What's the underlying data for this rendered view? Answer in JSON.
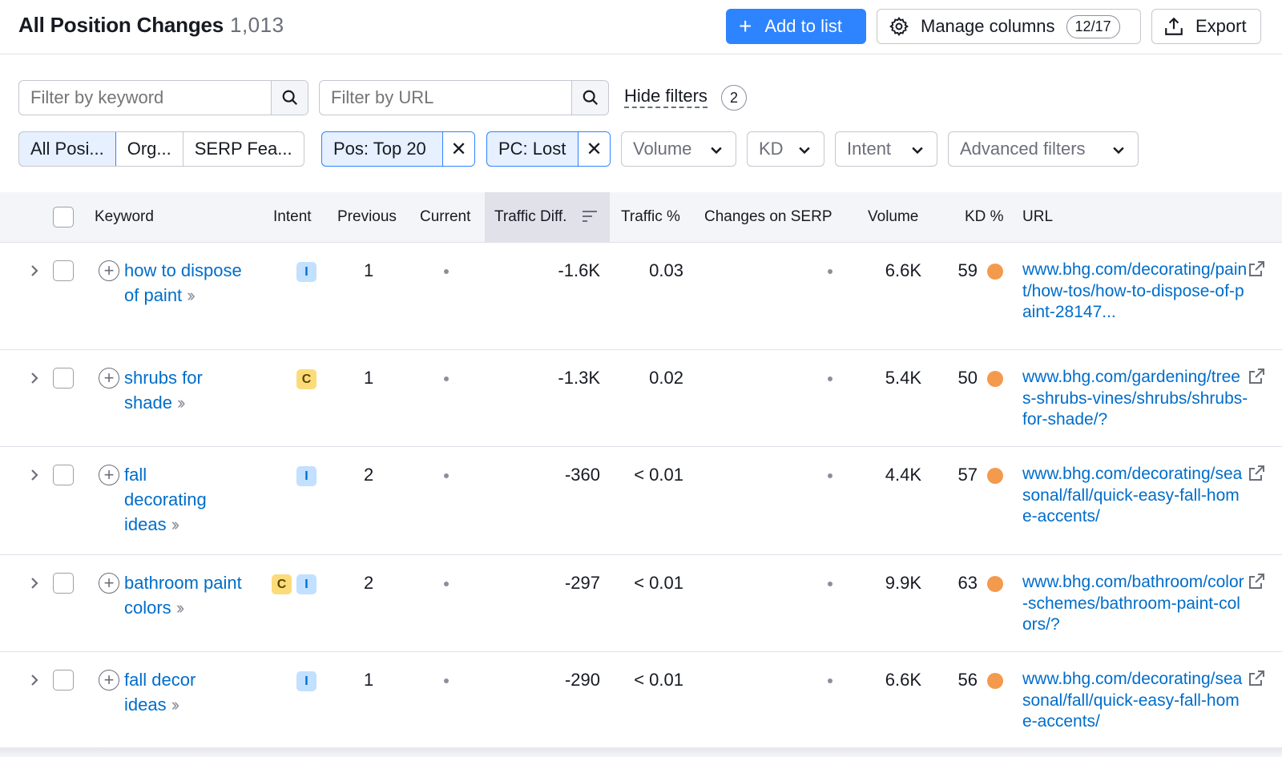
{
  "header": {
    "title": "All Position Changes",
    "count": "1,013",
    "add_to_list": "Add to list",
    "manage_columns": "Manage columns",
    "manage_columns_count": "12/17",
    "export": "Export"
  },
  "filters": {
    "keyword_placeholder": "Filter by keyword",
    "url_placeholder": "Filter by URL",
    "hide_filters": "Hide filters",
    "hide_filters_count": "2",
    "segments": [
      "All Posi...",
      "Org...",
      "SERP Fea..."
    ],
    "chips": [
      "Pos: Top 20",
      "PC: Lost"
    ],
    "dropdowns": [
      "Volume",
      "KD",
      "Intent",
      "Advanced filters"
    ]
  },
  "table": {
    "columns": [
      "Keyword",
      "Intent",
      "Previous",
      "Current",
      "Traffic Diff.",
      "Traffic %",
      "Changes on SERP",
      "Volume",
      "KD %",
      "URL"
    ],
    "rows": [
      {
        "keyword": "how to dispose of paint",
        "intents": [
          "I"
        ],
        "previous": "1",
        "traffic_diff": "-1.6K",
        "traffic_pct": "0.03",
        "volume": "6.6K",
        "kd": "59",
        "url": "www.bhg.com/decorating/paint/how-tos/how-to-dispose-of-paint-28147..."
      },
      {
        "keyword": "shrubs for shade",
        "intents": [
          "C"
        ],
        "previous": "1",
        "traffic_diff": "-1.3K",
        "traffic_pct": "0.02",
        "volume": "5.4K",
        "kd": "50",
        "url": "www.bhg.com/gardening/trees-shrubs-vines/shrubs/shrubs-for-shade/?"
      },
      {
        "keyword": "fall decorating ideas",
        "intents": [
          "I"
        ],
        "previous": "2",
        "traffic_diff": "-360",
        "traffic_pct": "< 0.01",
        "volume": "4.4K",
        "kd": "57",
        "url": "www.bhg.com/decorating/seasonal/fall/quick-easy-fall-home-accents/"
      },
      {
        "keyword": "bathroom paint colors",
        "intents": [
          "C",
          "I"
        ],
        "previous": "2",
        "traffic_diff": "-297",
        "traffic_pct": "< 0.01",
        "volume": "9.9K",
        "kd": "63",
        "url": "www.bhg.com/bathroom/color-schemes/bathroom-paint-colors/?"
      },
      {
        "keyword": "fall decor ideas",
        "intents": [
          "I"
        ],
        "previous": "1",
        "traffic_diff": "-290",
        "traffic_pct": "< 0.01",
        "volume": "6.6K",
        "kd": "56",
        "url": "www.bhg.com/decorating/seasonal/fall/quick-easy-fall-home-accents/"
      }
    ]
  },
  "colors": {
    "primary": "#2e83ff",
    "link": "#006dca",
    "kd_orange": "#f39a4d",
    "intent_informational": "#c2e0ff",
    "intent_commercial": "#fcdc7a"
  },
  "icons": [
    "plus-icon",
    "gear-icon",
    "export-icon",
    "search-icon",
    "close-icon",
    "chevron-down-icon",
    "sort-icon",
    "chevron-right-icon",
    "add-circle-icon",
    "double-chevron-icon",
    "external-link-icon"
  ]
}
